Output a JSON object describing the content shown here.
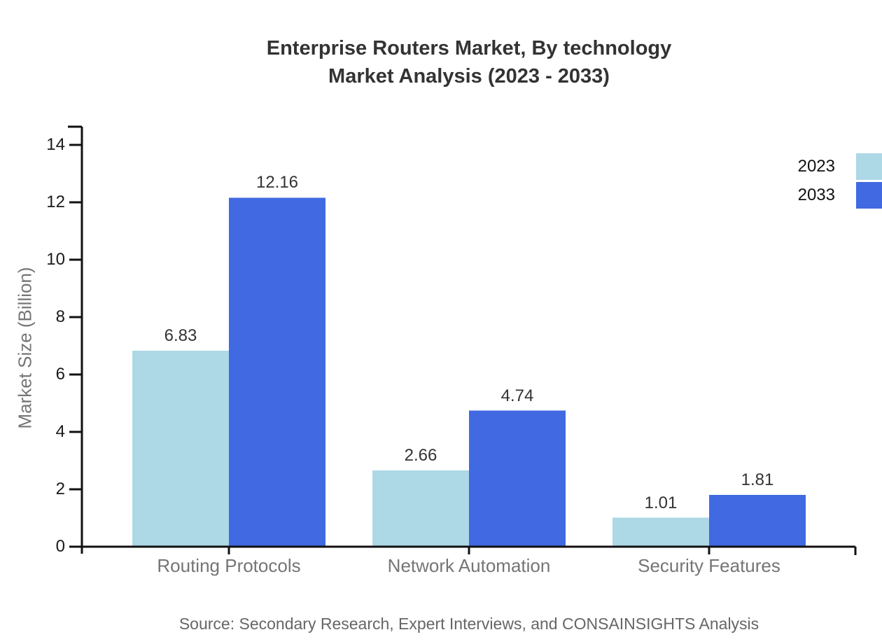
{
  "chart_data": {
    "type": "bar",
    "title": "Enterprise Routers Market, By technology",
    "subtitle": "Market Analysis (2023 - 2033)",
    "source_note": "Source: Secondary Research, Expert Interviews, and CONSAINSIGHTS Analysis",
    "categories": [
      "Routing Protocols",
      "Network Automation",
      "Security Features"
    ],
    "series": [
      {
        "name": "2023",
        "color": "#ADD8E6",
        "values": [
          6.83,
          2.66,
          1.01
        ]
      },
      {
        "name": "2033",
        "color": "#4169E1",
        "values": [
          12.16,
          4.74,
          1.81
        ]
      }
    ],
    "xlabel": "",
    "ylabel": "Market Size (Billion)",
    "ylim": [
      0,
      14
    ],
    "yticks": [
      0,
      2,
      4,
      6,
      8,
      10,
      12,
      14
    ],
    "grid": false,
    "legend_position": "top-right",
    "value_label_decimals": 2
  }
}
